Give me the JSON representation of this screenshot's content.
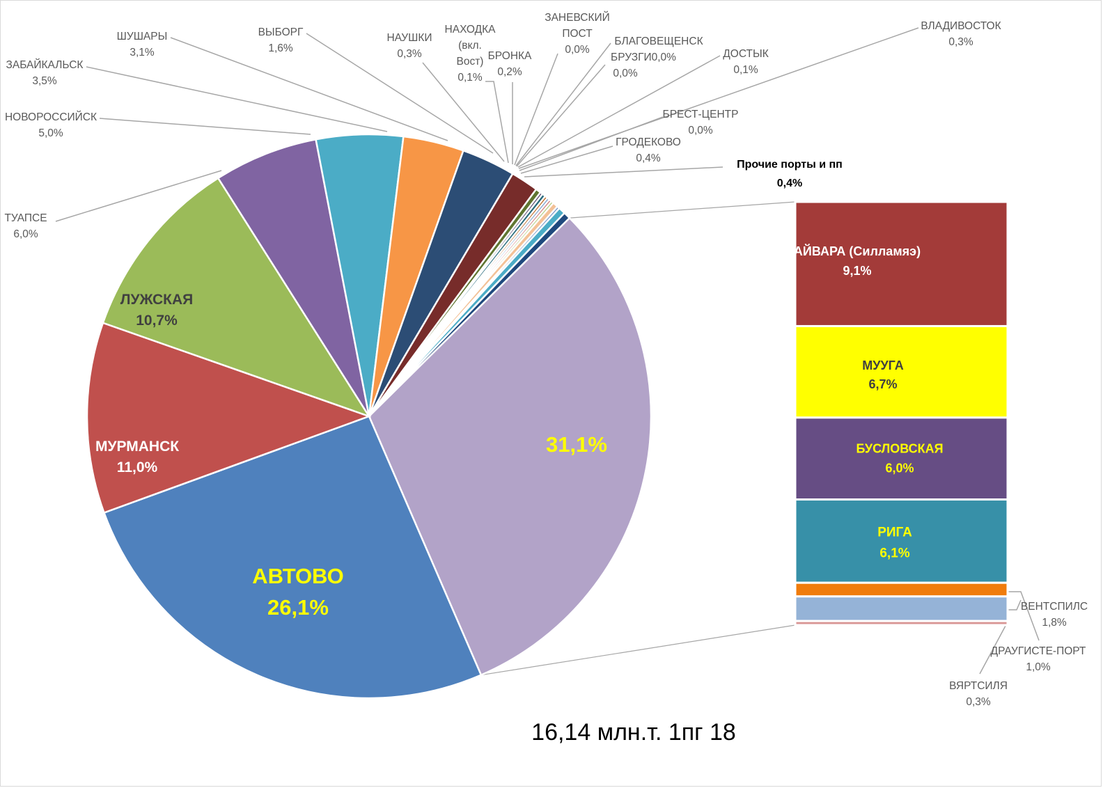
{
  "chart_data": {
    "type": "pie-of-bar",
    "title": "16,14  млн.т. 1пг 18",
    "pie": [
      {
        "name": "",
        "value": 31.1,
        "label": "31,1%",
        "color": "#b2a3c8"
      },
      {
        "name": "АВТОВО",
        "value": 26.1,
        "label": "26,1%",
        "color": "#4f81bd"
      },
      {
        "name": "МУРМАНСК",
        "value": 11.0,
        "label": "11,0%",
        "color": "#c0504d"
      },
      {
        "name": "ЛУЖСКАЯ",
        "value": 10.7,
        "label": "10,7%",
        "color": "#9bbb59"
      },
      {
        "name": "ТУАПСЕ",
        "value": 6.0,
        "label": "6,0%",
        "color": "#8064a2"
      },
      {
        "name": "НОВОРОССИЙСК",
        "value": 5.0,
        "label": "5,0%",
        "color": "#4bacc6"
      },
      {
        "name": "ЗАБАЙКАЛЬСК",
        "value": 3.5,
        "label": "3,5%",
        "color": "#f79646"
      },
      {
        "name": "ШУШАРЫ",
        "value": 3.1,
        "label": "3,1%",
        "color": "#2c4d75"
      },
      {
        "name": "ВЫБОРГ",
        "value": 1.6,
        "label": "1,6%",
        "color": "#772c2a"
      },
      {
        "name": "НАУШКИ",
        "value": 0.3,
        "label": "0,3%",
        "color": "#5f7530"
      },
      {
        "name": "НАХОДКА (вкл. Вост)",
        "value": 0.1,
        "label": "0,1%",
        "color": "#4d3b62"
      },
      {
        "name": "БРОНКА",
        "value": 0.2,
        "label": "0,2%",
        "color": "#276a7c"
      },
      {
        "name": "ЗАНЕВСКИЙ ПОСТ",
        "value": 0.0,
        "label": "0,0%",
        "color": "#b65708"
      },
      {
        "name": "БЛАГОВЕЩЕНСК",
        "value": 0.0,
        "label": "",
        "color": "#729aca"
      },
      {
        "name": "БРУЗГИ",
        "value": 0.0,
        "label": "0,0%",
        "color": "#cd7371"
      },
      {
        "name": "ДОСТЫК",
        "value": 0.1,
        "label": "0,1%",
        "color": "#afc97a"
      },
      {
        "name": "ВЛАДИВОСТОК",
        "value": 0.3,
        "label": "0,3%",
        "color": "#f3c197"
      },
      {
        "name": "БРЕСТ-ЦЕНТР",
        "value": 0.0,
        "label": "0,0%",
        "color": "#6d8fc5"
      },
      {
        "name": "ГРОДЕКОВО",
        "value": 0.4,
        "label": "0,4%",
        "color": "#4bacc6"
      },
      {
        "name": "Прочие порты и пп",
        "value": 0.4,
        "label": "0,4%",
        "color": "#1f497d"
      }
    ],
    "bar": [
      {
        "name": "АЙВАРА (Силламяэ)",
        "value": 9.1,
        "label": "9,1%",
        "color": "#a33b39"
      },
      {
        "name": "МУУГА",
        "value": 6.7,
        "label": "6,7%",
        "color": "#ffff00"
      },
      {
        "name": "БУСЛОВСКАЯ",
        "value": 6.0,
        "label": "6,0%",
        "color": "#664d84"
      },
      {
        "name": "РИГА",
        "value": 6.1,
        "label": "6,1%",
        "color": "#3790a8"
      },
      {
        "name": "ДРАУГИСТЕ-ПОРТ",
        "value": 1.0,
        "label": "1,0%",
        "color": "#f07c0c"
      },
      {
        "name": "ВЕНТСПИЛС",
        "value": 1.8,
        "label": "1,8%",
        "color": "#95b3d7"
      },
      {
        "name": "ВЯРТСИЛЯ",
        "value": 0.3,
        "label": "0,3%",
        "color": "#d99694"
      }
    ],
    "legend": "none"
  }
}
